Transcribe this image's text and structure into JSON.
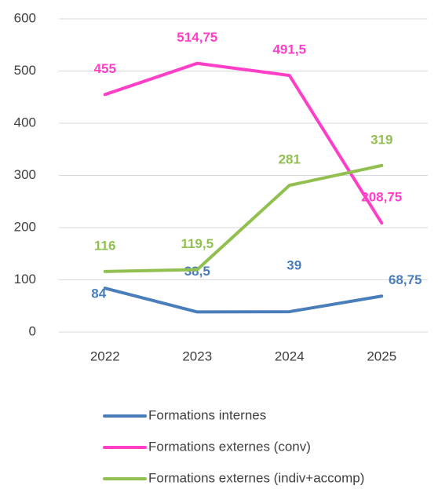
{
  "chart_data": {
    "type": "line",
    "categories": [
      "2022",
      "2023",
      "2024",
      "2025"
    ],
    "series": [
      {
        "name": "Formations internes",
        "color": "#4a7ebb",
        "values": [
          84,
          38.5,
          39,
          68.75
        ],
        "value_labels": [
          "84",
          "38,5",
          "39",
          "68,75"
        ]
      },
      {
        "name": "Formations externes (conv)",
        "color": "#ff3fc8",
        "values": [
          455,
          514.75,
          491.5,
          208.75
        ],
        "value_labels": [
          "455",
          "514,75",
          "491,5",
          "208,75"
        ]
      },
      {
        "name": "Formations externes (indiv+accomp)",
        "color": "#92c050",
        "values": [
          116,
          119.5,
          281,
          319
        ],
        "value_labels": [
          "116",
          "119,5",
          "281",
          "319"
        ]
      }
    ],
    "ylim": [
      0,
      600
    ],
    "yticks": [
      0,
      100,
      200,
      300,
      400,
      500,
      600
    ],
    "grid": true,
    "legend": "bottom"
  }
}
